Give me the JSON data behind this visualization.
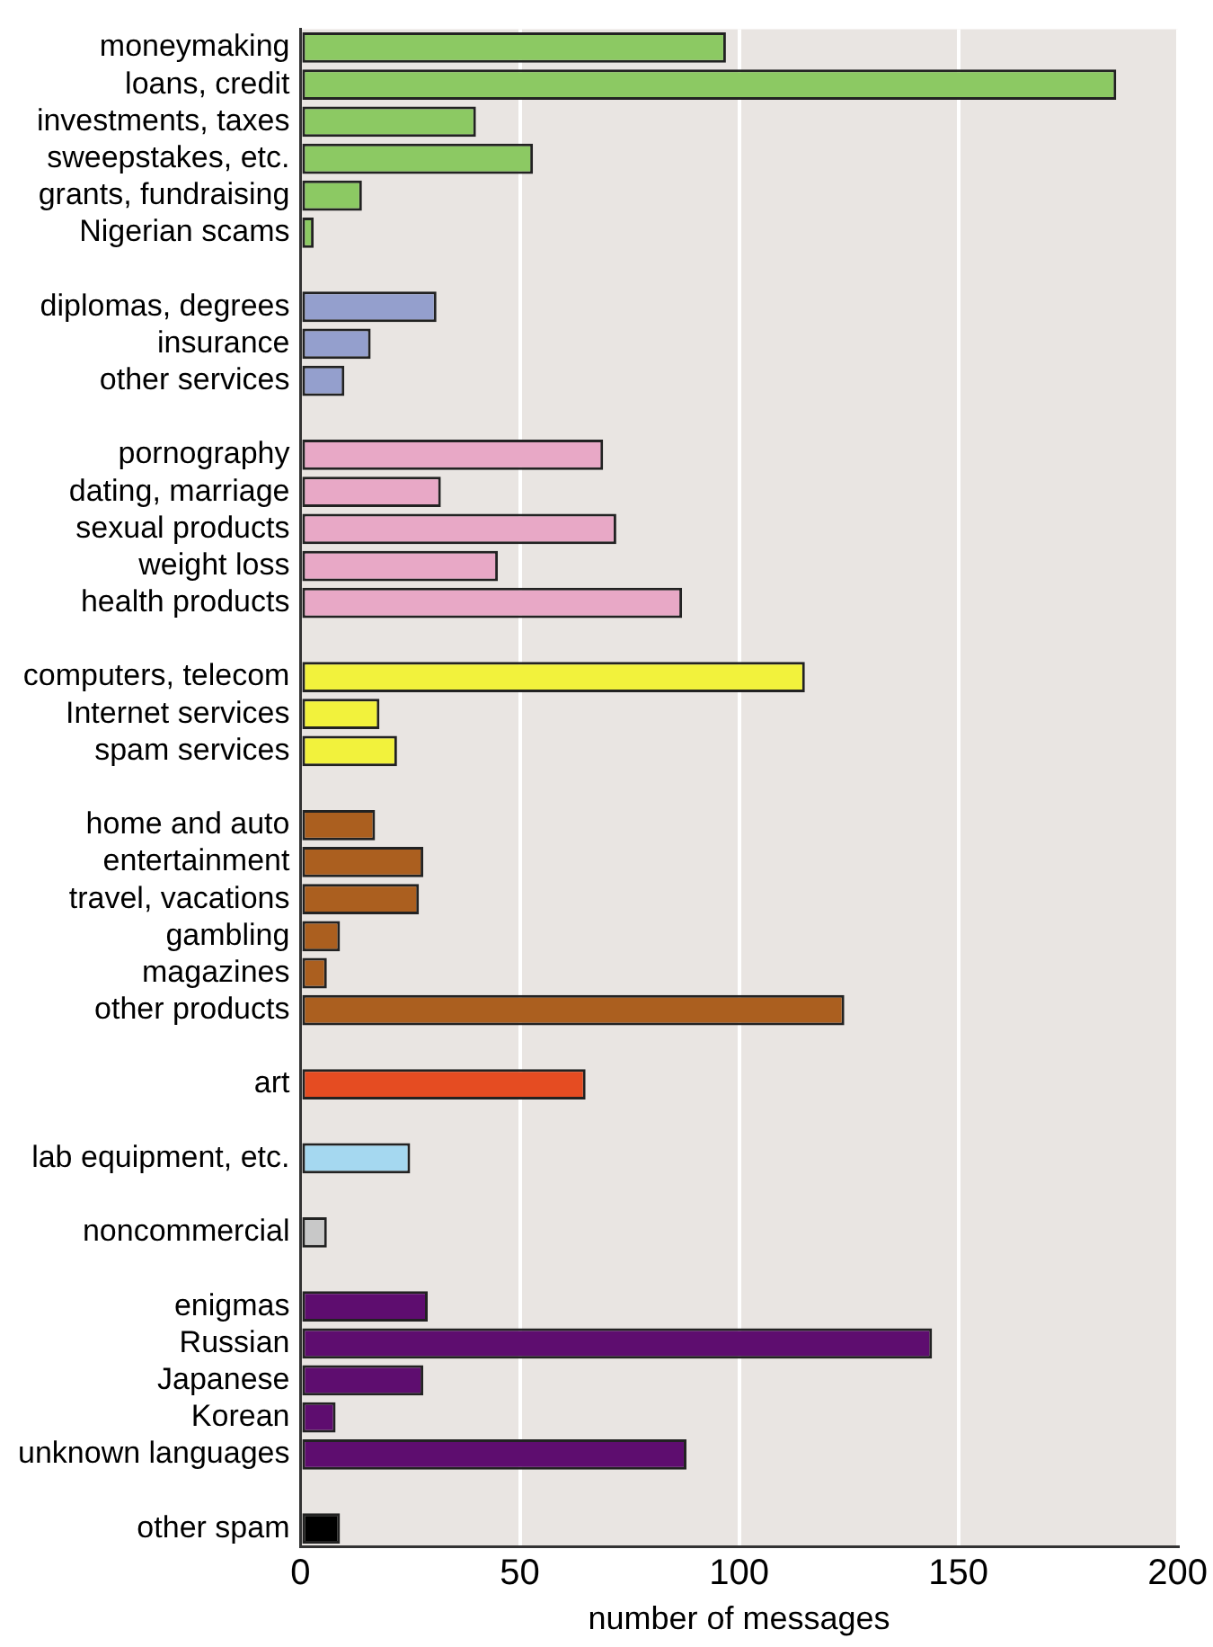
{
  "chart_data": {
    "type": "bar",
    "orientation": "horizontal",
    "xlabel": "number of messages",
    "categories": [
      "moneymaking",
      "loans, credit",
      "investments, taxes",
      "sweepstakes, etc.",
      "grants, fundraising",
      "Nigerian scams",
      null,
      "diplomas, degrees",
      "insurance",
      "other services",
      null,
      "pornography",
      "dating, marriage",
      "sexual products",
      "weight loss",
      "health products",
      null,
      "computers, telecom",
      "Internet services",
      "spam services",
      null,
      "home and auto",
      "entertainment",
      "travel, vacations",
      "gambling",
      "magazines",
      "other products",
      null,
      "art",
      null,
      "lab equipment, etc.",
      null,
      "noncommercial",
      null,
      "enigmas",
      "Russian",
      "Japanese",
      "Korean",
      "unknown languages",
      null,
      "other spam"
    ],
    "values": [
      97,
      186,
      40,
      53,
      14,
      3,
      null,
      31,
      16,
      10,
      null,
      69,
      32,
      72,
      45,
      87,
      null,
      115,
      18,
      22,
      null,
      17,
      28,
      27,
      9,
      6,
      124,
      null,
      65,
      null,
      25,
      null,
      6,
      null,
      29,
      144,
      28,
      8,
      88,
      null,
      9
    ],
    "colors": [
      "#8cc963",
      "#8cc963",
      "#8cc963",
      "#8cc963",
      "#8cc963",
      "#8cc963",
      null,
      "#949fcd",
      "#949fcd",
      "#949fcd",
      null,
      "#e8a8c6",
      "#e8a8c6",
      "#e8a8c6",
      "#e8a8c6",
      "#e8a8c6",
      null,
      "#f2f23c",
      "#f2f23c",
      "#f2f23c",
      null,
      "#ab5f1f",
      "#ab5f1f",
      "#ab5f1f",
      "#ab5f1f",
      "#ab5f1f",
      "#ab5f1f",
      null,
      "#e54c22",
      null,
      "#a5d8f0",
      null,
      "#c8c8c8",
      null,
      "#5e0d6f",
      "#5e0d6f",
      "#5e0d6f",
      "#5e0d6f",
      "#5e0d6f",
      null,
      "#000000"
    ],
    "xlim": [
      0,
      200
    ],
    "xticks": [
      0,
      50,
      100,
      150,
      200
    ],
    "grid": "x",
    "legend": false
  }
}
